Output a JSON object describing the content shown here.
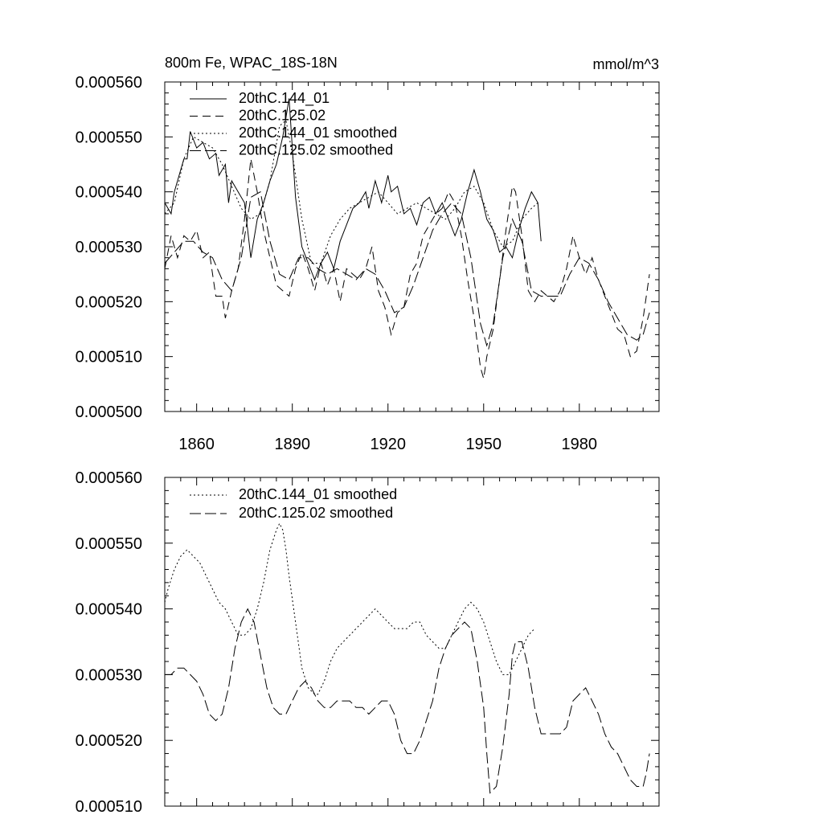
{
  "chart_data": [
    {
      "type": "line",
      "title": "800m Fe, WPAC_18S-18N",
      "units": "mmol/m^3",
      "xlim": [
        1850,
        2005
      ],
      "ylim": [
        0.0005,
        0.00056
      ],
      "y_ticks": [
        "0.000500",
        "0.000510",
        "0.000520",
        "0.000530",
        "0.000540",
        "0.000550",
        "0.000560"
      ],
      "x_ticks": [
        "1860",
        "1890",
        "1920",
        "1950",
        "1980"
      ],
      "legend_position": "top-left",
      "series": [
        {
          "name": "20thC.144_01",
          "x": [
            1850,
            1852,
            1853,
            1856,
            1857,
            1858,
            1860,
            1862,
            1864,
            1866,
            1867,
            1869,
            1870,
            1871,
            1873,
            1875,
            1876,
            1877,
            1879,
            1881,
            1883,
            1885,
            1887,
            1889,
            1891,
            1893,
            1895,
            1897,
            1899,
            1901,
            1903,
            1905,
            1907,
            1909,
            1911,
            1913,
            1914,
            1916,
            1918,
            1920,
            1921,
            1923,
            1925,
            1927,
            1929,
            1931,
            1933,
            1935,
            1937,
            1939,
            1941,
            1943,
            1945,
            1947,
            1949,
            1951,
            1953,
            1955,
            1957,
            1959,
            1961,
            1963,
            1965,
            1967,
            1968
          ],
          "y": [
            0.000538,
            0.000536,
            0.00054,
            0.000546,
            0.000546,
            0.000551,
            0.000548,
            0.000549,
            0.000546,
            0.000547,
            0.000543,
            0.000545,
            0.000538,
            0.000542,
            0.00054,
            0.000538,
            0.000533,
            0.000528,
            0.000535,
            0.000538,
            0.000542,
            0.000545,
            0.00055,
            0.000557,
            0.000539,
            0.00053,
            0.000527,
            0.000524,
            0.000527,
            0.000529,
            0.000526,
            0.000531,
            0.000534,
            0.000537,
            0.000538,
            0.00054,
            0.000537,
            0.000542,
            0.000538,
            0.000543,
            0.00054,
            0.000541,
            0.000536,
            0.000537,
            0.000534,
            0.000538,
            0.000539,
            0.000536,
            0.000538,
            0.000535,
            0.000532,
            0.000535,
            0.00054,
            0.000544,
            0.00054,
            0.000535,
            0.000533,
            0.000529,
            0.00053,
            0.000528,
            0.000533,
            0.000537,
            0.00054,
            0.000538,
            0.000531
          ]
        },
        {
          "name": "20thC.125.02",
          "x": [
            1850,
            1852,
            1854,
            1856,
            1858,
            1860,
            1862,
            1864,
            1866,
            1868,
            1869,
            1871,
            1873,
            1875,
            1877,
            1879,
            1881,
            1883,
            1885,
            1887,
            1889,
            1891,
            1893,
            1895,
            1897,
            1899,
            1901,
            1903,
            1905,
            1907,
            1909,
            1911,
            1913,
            1915,
            1917,
            1919,
            1921,
            1923,
            1925,
            1927,
            1929,
            1931,
            1933,
            1935,
            1937,
            1939,
            1941,
            1943,
            1945,
            1947,
            1949,
            1950,
            1951,
            1953,
            1955,
            1957,
            1959,
            1960,
            1962,
            1964,
            1966,
            1968,
            1970,
            1972,
            1974,
            1976,
            1978,
            1980,
            1982,
            1984,
            1986,
            1988,
            1990,
            1992,
            1994,
            1996,
            1998,
            2000,
            2002
          ],
          "y": [
            0.000526,
            0.000532,
            0.000528,
            0.000532,
            0.000531,
            0.000533,
            0.000528,
            0.000529,
            0.000521,
            0.000521,
            0.000517,
            0.000522,
            0.000526,
            0.000535,
            0.000546,
            0.00054,
            0.000533,
            0.000528,
            0.000523,
            0.000522,
            0.000521,
            0.000526,
            0.000529,
            0.000526,
            0.000522,
            0.000527,
            0.000523,
            0.000526,
            0.00052,
            0.000526,
            0.000525,
            0.000524,
            0.000526,
            0.00053,
            0.000522,
            0.000519,
            0.000514,
            0.000518,
            0.000519,
            0.000525,
            0.000527,
            0.000532,
            0.000534,
            0.000536,
            0.000537,
            0.00054,
            0.000538,
            0.000532,
            0.000524,
            0.000517,
            0.000508,
            0.000506,
            0.00051,
            0.000515,
            0.000524,
            0.000533,
            0.000541,
            0.00054,
            0.000532,
            0.000522,
            0.00052,
            0.000522,
            0.000521,
            0.00052,
            0.000522,
            0.000526,
            0.000532,
            0.000528,
            0.000525,
            0.000528,
            0.000524,
            0.000521,
            0.000518,
            0.000515,
            0.000514,
            0.00051,
            0.000511,
            0.000517,
            0.000525
          ]
        },
        {
          "name": "20thC.144_01 smoothed",
          "x": [
            1850,
            1853,
            1856,
            1859,
            1862,
            1865,
            1868,
            1871,
            1874,
            1877,
            1880,
            1883,
            1886,
            1888,
            1890,
            1893,
            1896,
            1899,
            1902,
            1905,
            1908,
            1911,
            1914,
            1917,
            1920,
            1923,
            1926,
            1929,
            1932,
            1935,
            1938,
            1941,
            1944,
            1947,
            1950,
            1953,
            1956,
            1959,
            1962,
            1965,
            1967
          ],
          "y": [
            0.000536,
            0.000538,
            0.000546,
            0.00055,
            0.000549,
            0.000548,
            0.000545,
            0.000541,
            0.000537,
            0.000535,
            0.000536,
            0.000542,
            0.000552,
            0.000553,
            0.000547,
            0.000535,
            0.000527,
            0.000527,
            0.000532,
            0.000535,
            0.000537,
            0.000538,
            0.000539,
            0.00054,
            0.000538,
            0.000536,
            0.000537,
            0.000538,
            0.000537,
            0.000536,
            0.000535,
            0.000537,
            0.00054,
            0.000541,
            0.000538,
            0.000533,
            0.00053,
            0.000531,
            0.000535,
            0.000537,
            0.000538
          ]
        },
        {
          "name": "20thC.125.02 smoothed",
          "x": [
            1850,
            1853,
            1856,
            1859,
            1862,
            1865,
            1868,
            1871,
            1874,
            1877,
            1880,
            1883,
            1886,
            1889,
            1892,
            1895,
            1898,
            1901,
            1904,
            1907,
            1910,
            1913,
            1916,
            1919,
            1922,
            1925,
            1928,
            1931,
            1934,
            1937,
            1940,
            1943,
            1946,
            1949,
            1951,
            1953,
            1956,
            1959,
            1962,
            1965,
            1968,
            1971,
            1974,
            1977,
            1980,
            1983,
            1986,
            1989,
            1992,
            1995,
            1998,
            2000,
            2002
          ],
          "y": [
            0.000527,
            0.000529,
            0.000531,
            0.000531,
            0.000529,
            0.000528,
            0.000524,
            0.000522,
            0.000528,
            0.000539,
            0.00054,
            0.000531,
            0.000525,
            0.000524,
            0.000528,
            0.000528,
            0.000526,
            0.000525,
            0.000526,
            0.000525,
            0.000524,
            0.000526,
            0.000525,
            0.000522,
            0.000518,
            0.000519,
            0.000523,
            0.000528,
            0.000533,
            0.000536,
            0.000538,
            0.000536,
            0.000528,
            0.000516,
            0.000512,
            0.000516,
            0.000528,
            0.000535,
            0.000531,
            0.000522,
            0.000521,
            0.000521,
            0.000521,
            0.000525,
            0.000528,
            0.000527,
            0.000524,
            0.00052,
            0.000517,
            0.000514,
            0.000513,
            0.000514,
            0.000518
          ]
        }
      ]
    },
    {
      "type": "line",
      "xlim": [
        1850,
        2005
      ],
      "ylim": [
        0.00051,
        0.00056
      ],
      "y_ticks": [
        "0.000510",
        "0.000520",
        "0.000530",
        "0.000540",
        "0.000550",
        "0.000560"
      ],
      "legend_position": "top-left",
      "series": [
        {
          "name": "20thC.144_01 smoothed",
          "x": [
            1850,
            1851,
            1853,
            1855,
            1857,
            1859,
            1861,
            1863,
            1865,
            1867,
            1869,
            1871,
            1873,
            1875,
            1877,
            1879,
            1881,
            1883,
            1885,
            1886,
            1887,
            1888,
            1889,
            1891,
            1893,
            1895,
            1897,
            1898,
            1900,
            1902,
            1904,
            1906,
            1908,
            1910,
            1912,
            1914,
            1916,
            1918,
            1920,
            1922,
            1924,
            1926,
            1928,
            1930,
            1932,
            1934,
            1936,
            1938,
            1940,
            1942,
            1944,
            1946,
            1948,
            1950,
            1952,
            1954,
            1956,
            1958,
            1960,
            1962,
            1964,
            1966
          ],
          "y": [
            0.000541,
            0.000543,
            0.000546,
            0.000548,
            0.000549,
            0.000548,
            0.000547,
            0.000545,
            0.000543,
            0.000541,
            0.00054,
            0.000538,
            0.000536,
            0.000536,
            0.000537,
            0.00054,
            0.000544,
            0.000549,
            0.000552,
            0.000553,
            0.000552,
            0.000549,
            0.000545,
            0.000538,
            0.000531,
            0.000528,
            0.000527,
            0.000527,
            0.000529,
            0.000532,
            0.000534,
            0.000535,
            0.000536,
            0.000537,
            0.000538,
            0.000539,
            0.00054,
            0.000539,
            0.000538,
            0.000537,
            0.000537,
            0.000537,
            0.000538,
            0.000538,
            0.000536,
            0.000535,
            0.000534,
            0.000534,
            0.000536,
            0.000538,
            0.00054,
            0.000541,
            0.00054,
            0.000538,
            0.000535,
            0.000532,
            0.00053,
            0.00053,
            0.000532,
            0.000534,
            0.000536,
            0.000537
          ]
        },
        {
          "name": "20thC.125.02 smoothed",
          "x": [
            1850,
            1852,
            1854,
            1856,
            1858,
            1860,
            1862,
            1864,
            1866,
            1868,
            1870,
            1872,
            1874,
            1876,
            1878,
            1880,
            1882,
            1884,
            1886,
            1888,
            1890,
            1892,
            1894,
            1896,
            1898,
            1900,
            1902,
            1904,
            1906,
            1908,
            1910,
            1912,
            1914,
            1916,
            1918,
            1920,
            1922,
            1924,
            1926,
            1928,
            1930,
            1932,
            1934,
            1936,
            1938,
            1940,
            1942,
            1944,
            1946,
            1948,
            1950,
            1951,
            1952,
            1954,
            1956,
            1958,
            1959,
            1960,
            1962,
            1964,
            1966,
            1968,
            1970,
            1972,
            1974,
            1976,
            1978,
            1980,
            1982,
            1984,
            1986,
            1988,
            1990,
            1992,
            1994,
            1996,
            1998,
            2000,
            2001,
            2002
          ],
          "y": [
            0.00053,
            0.00053,
            0.000531,
            0.000531,
            0.00053,
            0.000529,
            0.000527,
            0.000524,
            0.000523,
            0.000524,
            0.000528,
            0.000534,
            0.000538,
            0.00054,
            0.000538,
            0.000533,
            0.000528,
            0.000525,
            0.000524,
            0.000524,
            0.000526,
            0.000528,
            0.000529,
            0.000528,
            0.000526,
            0.000525,
            0.000525,
            0.000526,
            0.000526,
            0.000526,
            0.000525,
            0.000525,
            0.000524,
            0.000525,
            0.000526,
            0.000526,
            0.000524,
            0.00052,
            0.000518,
            0.000518,
            0.00052,
            0.000523,
            0.000526,
            0.000531,
            0.000534,
            0.000536,
            0.000537,
            0.000538,
            0.000537,
            0.000532,
            0.000525,
            0.000518,
            0.000512,
            0.000513,
            0.000519,
            0.000527,
            0.000533,
            0.000535,
            0.000535,
            0.000531,
            0.000525,
            0.000521,
            0.000521,
            0.000521,
            0.000521,
            0.000522,
            0.000526,
            0.000527,
            0.000528,
            0.000526,
            0.000524,
            0.000521,
            0.000519,
            0.000518,
            0.000516,
            0.000514,
            0.000513,
            0.000513,
            0.000515,
            0.000518
          ]
        }
      ]
    }
  ]
}
